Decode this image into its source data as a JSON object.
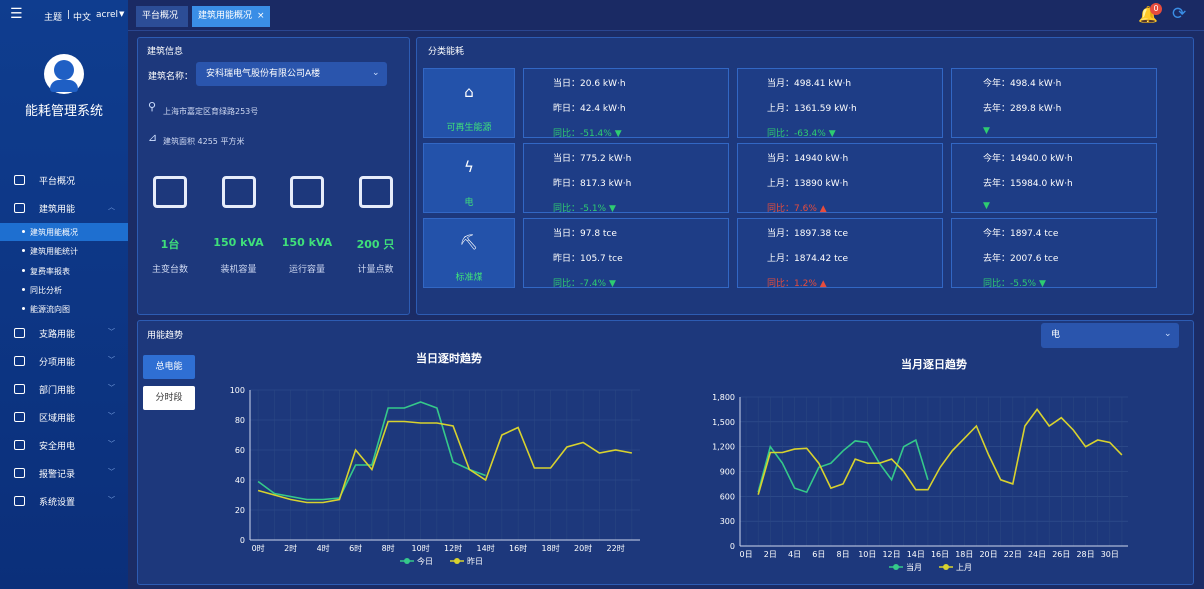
{
  "header": {
    "theme": "主题",
    "lang": "中文",
    "user": "acrel",
    "tabs": [
      "平台概况",
      "建筑用能概况"
    ],
    "badge": "0"
  },
  "sidebar": {
    "system_name": "能耗管理系统",
    "menu": [
      {
        "label": "平台概况"
      },
      {
        "label": "建筑用能",
        "children": [
          "建筑用能概况",
          "建筑用能统计",
          "复费率报表",
          "同比分析",
          "能源流向图"
        ]
      },
      {
        "label": "支路用能"
      },
      {
        "label": "分项用能"
      },
      {
        "label": "部门用能"
      },
      {
        "label": "区域用能"
      },
      {
        "label": "安全用电"
      },
      {
        "label": "报警记录"
      },
      {
        "label": "系统设置"
      }
    ]
  },
  "building": {
    "title": "建筑信息",
    "name_label": "建筑名称：",
    "name": "安科瑞电气股份有限公司A楼",
    "address": "上海市嘉定区育绿路253号",
    "area": "建筑面积 4255 平方米",
    "stats": [
      {
        "value": "1台",
        "label": "主变台数"
      },
      {
        "value": "150 kVA",
        "label": "装机容量"
      },
      {
        "value": "150 kVA",
        "label": "运行容量"
      },
      {
        "value": "200 只",
        "label": "计量点数"
      }
    ]
  },
  "category": {
    "title": "分类能耗",
    "rows": [
      {
        "name": "可再生能源",
        "cells": [
          {
            "lines": [
              "当日：20.6 kW·h",
              "昨日：42.4 kW·h",
              "同比：-51.4% ▼"
            ],
            "color": "#2ecc71"
          },
          {
            "lines": [
              "当月：498.41 kW·h",
              "上月：1361.59 kW·h",
              "同比：-63.4% ▼"
            ],
            "color": "#2ecc71"
          },
          {
            "lines": [
              "今年：498.4 kW·h",
              "去年：289.8 kW·h",
              "▼"
            ],
            "color": "#2ecc71"
          }
        ]
      },
      {
        "name": "电",
        "cells": [
          {
            "lines": [
              "当日：775.2 kW·h",
              "昨日：817.3 kW·h",
              "同比：-5.1% ▼"
            ],
            "color": "#2ecc71"
          },
          {
            "lines": [
              "当月：14940 kW·h",
              "上月：13890 kW·h",
              "同比：7.6% ▲"
            ],
            "color": "#e74c3c"
          },
          {
            "lines": [
              "今年：14940.0 kW·h",
              "去年：15984.0 kW·h",
              "▼"
            ],
            "color": "#2ecc71"
          }
        ]
      },
      {
        "name": "标准煤",
        "cells": [
          {
            "lines": [
              "当日：97.8 tce",
              "昨日：105.7 tce",
              "同比：-7.4% ▼"
            ],
            "color": "#2ecc71"
          },
          {
            "lines": [
              "当月：1897.38 tce",
              "上月：1874.42 tce",
              "同比：1.2% ▲"
            ],
            "color": "#e74c3c"
          },
          {
            "lines": [
              "今年：1897.4 tce",
              "去年：2007.6 tce",
              "同比：-5.5% ▼"
            ],
            "color": "#2ecc71"
          }
        ]
      }
    ]
  },
  "trend": {
    "title": "用能趋势",
    "buttons": [
      "总电能",
      "分时段"
    ],
    "select": "电",
    "charts": [
      {
        "type": "line",
        "title": "当日逐时趋势",
        "categories": [
          "0时",
          null,
          "2时",
          null,
          "4时",
          null,
          "6时",
          null,
          "8时",
          null,
          "10时",
          null,
          "12时",
          null,
          "14时",
          null,
          "16时",
          null,
          "18时",
          null,
          "20时",
          null,
          "22时",
          null
        ],
        "ylim": [
          0,
          100
        ],
        "yticks": [
          0,
          20,
          40,
          60,
          80,
          100
        ],
        "grid": true,
        "series": [
          {
            "name": "今日",
            "color": "#35c98a",
            "values": [
              39,
              31,
              29,
              27,
              27,
              28,
              50,
              50,
              88,
              88,
              92,
              88,
              52,
              47,
              43,
              null,
              null,
              null,
              null,
              null,
              null,
              null,
              null,
              null
            ]
          },
          {
            "name": "昨日",
            "color": "#d8d22e",
            "values": [
              33,
              30,
              27,
              25,
              25,
              27,
              60,
              47,
              79,
              79,
              78,
              78,
              76,
              47,
              40,
              70,
              75,
              48,
              48,
              62,
              65,
              58,
              60,
              58
            ]
          }
        ]
      },
      {
        "type": "line",
        "title": "当月逐日趋势",
        "categories": [
          "0日",
          null,
          "2日",
          null,
          "4日",
          null,
          "6日",
          null,
          "8日",
          null,
          "10日",
          null,
          "12日",
          null,
          "14日",
          null,
          "16日",
          null,
          "18日",
          null,
          "20日",
          null,
          "22日",
          null,
          "24日",
          null,
          "26日",
          null,
          "28日",
          null,
          "30日",
          null
        ],
        "ylim": [
          0,
          1800
        ],
        "yticks": [
          0,
          300,
          600,
          900,
          {
            "value": 1200,
            "label": "1,200"
          },
          {
            "value": 1500,
            "label": "1,500"
          },
          {
            "value": 1800,
            "label": "1,800"
          }
        ],
        "grid": true,
        "series": [
          {
            "name": "当月",
            "color": "#35c98a",
            "values": [
              null,
              650,
              1200,
              1000,
              700,
              650,
              950,
              1000,
              1150,
              1270,
              1250,
              1000,
              800,
              1200,
              1280,
              800,
              null,
              null,
              null,
              null,
              null,
              null,
              null,
              null,
              null,
              null,
              null,
              null,
              null,
              null,
              null,
              null
            ]
          },
          {
            "name": "上月",
            "color": "#d8d22e",
            "values": [
              null,
              620,
              1130,
              1130,
              1170,
              1180,
              1000,
              700,
              750,
              1050,
              1000,
              1000,
              1050,
              900,
              680,
              680,
              950,
              1150,
              1300,
              1450,
              1100,
              800,
              750,
              1450,
              1650,
              1450,
              1550,
              1400,
              1200,
              1280,
              1250,
              1100
            ]
          }
        ]
      }
    ]
  }
}
